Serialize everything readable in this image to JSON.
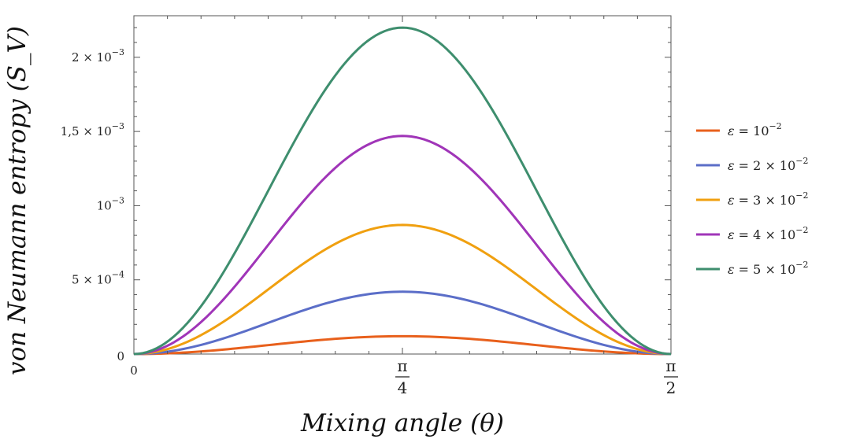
{
  "chart_data": {
    "type": "line",
    "xlabel": "Mixing angle (θ)",
    "ylabel": "von Neumann entropy (S_V)",
    "xlim": [
      0,
      1.5708
    ],
    "ylim": [
      0,
      0.00228
    ],
    "x_ticks": [
      {
        "value": 0,
        "label": "0",
        "kind": "plain"
      },
      {
        "value": 0.7854,
        "num": "π",
        "den": "4",
        "kind": "fraction"
      },
      {
        "value": 1.5708,
        "num": "π",
        "den": "2",
        "kind": "fraction"
      }
    ],
    "y_ticks": [
      {
        "value": 0,
        "label": "0",
        "kind": "plain"
      },
      {
        "value": 0.0005,
        "mant": "5 × 10",
        "exp": "−4",
        "kind": "sci"
      },
      {
        "value": 0.001,
        "mant": "10",
        "exp": "−3",
        "kind": "sci"
      },
      {
        "value": 0.0015,
        "mant": "1,5 × 10",
        "exp": "−3",
        "kind": "sci"
      },
      {
        "value": 0.002,
        "mant": "2 × 10",
        "exp": "−3",
        "kind": "sci"
      }
    ],
    "series": [
      {
        "legend_prefix": "ε = ",
        "legend_mant": "10",
        "legend_exp": "−2",
        "color": "#E8601C",
        "peak": 0.00012,
        "x": [
          0,
          0.1963,
          0.3927,
          0.589,
          0.7854,
          0.9817,
          1.1781,
          1.3744,
          1.5708
        ],
        "values": [
          0,
          1e-05,
          6e-05,
          0.000102,
          0.00012,
          0.000102,
          6e-05,
          1e-05,
          0
        ]
      },
      {
        "legend_prefix": "ε = ",
        "legend_mant": "2 × 10",
        "legend_exp": "−2",
        "color": "#5B6EC8",
        "peak": 0.00042,
        "x": [
          0,
          0.1963,
          0.3927,
          0.589,
          0.7854,
          0.9817,
          1.1781,
          1.3744,
          1.5708
        ],
        "values": [
          0,
          3.6e-05,
          0.00021,
          0.000358,
          0.00042,
          0.000358,
          0.00021,
          3.6e-05,
          0
        ]
      },
      {
        "legend_prefix": "ε = ",
        "legend_mant": "3 × 10",
        "legend_exp": "−2",
        "color": "#F0A010",
        "peak": 0.00087,
        "x": [
          0,
          0.1963,
          0.3927,
          0.589,
          0.7854,
          0.9817,
          1.1781,
          1.3744,
          1.5708
        ],
        "values": [
          0,
          7.5e-05,
          0.000435,
          0.00074,
          0.00087,
          0.00074,
          0.000435,
          7.5e-05,
          0
        ]
      },
      {
        "legend_prefix": "ε = ",
        "legend_mant": "4 × 10",
        "legend_exp": "−2",
        "color": "#A035B8",
        "peak": 0.00147,
        "x": [
          0,
          0.1963,
          0.3927,
          0.589,
          0.7854,
          0.9817,
          1.1781,
          1.3744,
          1.5708
        ],
        "values": [
          0,
          0.000127,
          0.000735,
          0.00125,
          0.00147,
          0.00125,
          0.000735,
          0.000127,
          0
        ]
      },
      {
        "legend_prefix": "ε = ",
        "legend_mant": "5 × 10",
        "legend_exp": "−2",
        "color": "#3E8E6E",
        "peak": 0.0022,
        "x": [
          0,
          0.1963,
          0.3927,
          0.589,
          0.7854,
          0.9817,
          1.1781,
          1.3744,
          1.5708
        ],
        "values": [
          0,
          0.00019,
          0.0011,
          0.00188,
          0.0022,
          0.00188,
          0.0011,
          0.00019,
          0
        ]
      }
    ],
    "legend_position": "right",
    "grid": false
  }
}
